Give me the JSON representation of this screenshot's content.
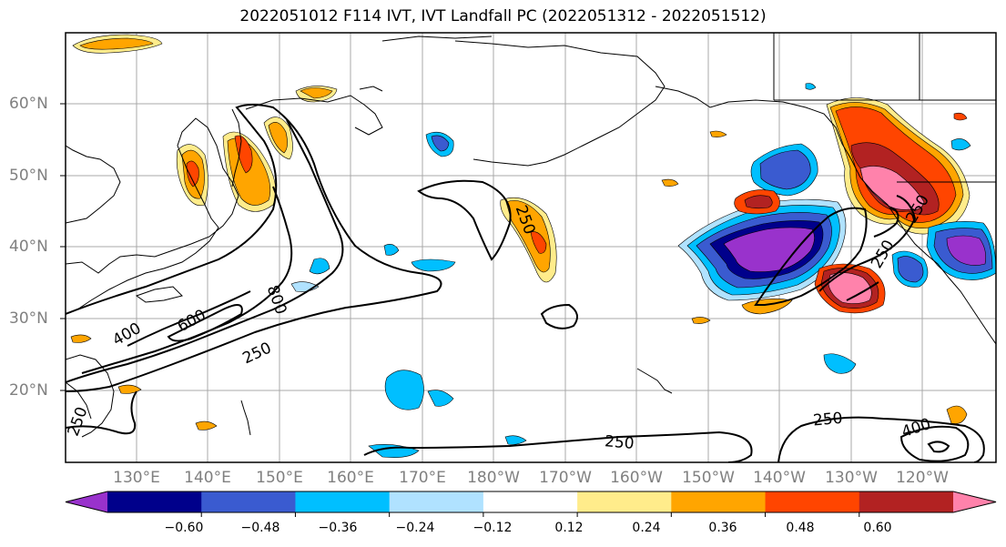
{
  "title": "2022051012 F114 IVT, IVT Landfall PC (2022051312 - 2022051512)",
  "latitude_labels": [
    "60°N",
    "50°N",
    "40°N",
    "30°N",
    "20°N"
  ],
  "longitude_labels": [
    "130°E",
    "140°E",
    "150°E",
    "160°E",
    "170°E",
    "180°W",
    "170°W",
    "160°W",
    "150°W",
    "140°W",
    "130°W",
    "120°W"
  ],
  "colorbar": {
    "ticks": [
      "−0.60",
      "−0.48",
      "−0.36",
      "−0.24",
      "−0.12",
      "0.12",
      "0.24",
      "0.36",
      "0.48",
      "0.60"
    ],
    "colors": [
      "#9932CC",
      "#00008B",
      "#3A5BD0",
      "#00BFFF",
      "#B0E2FF",
      "#FFFFFF",
      "#FFEC8B",
      "#FFA500",
      "#FF4500",
      "#B22222",
      "#FF82AB"
    ]
  },
  "contour_labels": [
    "400",
    "600",
    "800",
    "250",
    "250",
    "250",
    "250",
    "400",
    "250",
    "250",
    "250"
  ]
}
